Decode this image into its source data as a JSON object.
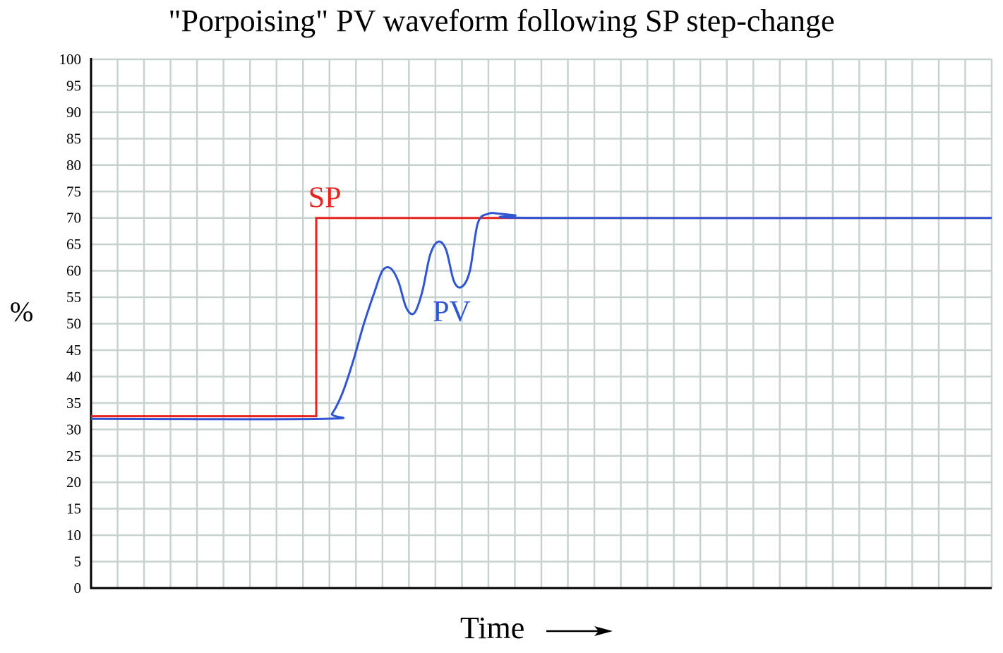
{
  "chart_data": {
    "type": "line",
    "title": "\"Porpoising\" PV waveform following SP step-change",
    "xlabel": "Time",
    "ylabel": "%",
    "ylim": [
      0,
      100
    ],
    "xlim": [
      0,
      34
    ],
    "grid": true,
    "y_ticks": [
      "0",
      "5",
      "10",
      "15",
      "20",
      "25",
      "30",
      "35",
      "40",
      "45",
      "50",
      "55",
      "60",
      "65",
      "70",
      "75",
      "80",
      "85",
      "90",
      "95",
      "100"
    ],
    "x_tick_labels_shown": false,
    "colors": {
      "sp": "#e8231f",
      "pv": "#2f55d4",
      "grid": "#c8d3d0",
      "axes": "#000000"
    },
    "series": [
      {
        "name": "SP",
        "label_text": "SP",
        "label_at": [
          8.2,
          72
        ],
        "x": [
          0,
          8.5,
          8.5,
          34
        ],
        "values": [
          32.5,
          32.5,
          70,
          70
        ]
      },
      {
        "name": "PV",
        "label_text": "PV",
        "label_at": [
          12.9,
          50.5
        ],
        "x": [
          0,
          8.8,
          9.1,
          9.5,
          9.9,
          10.3,
          10.7,
          11.0,
          11.3,
          11.6,
          11.9,
          12.2,
          12.5,
          12.8,
          13.1,
          13.4,
          13.7,
          14.0,
          14.3,
          14.6,
          15.0,
          15.4,
          16.0,
          17.0,
          34
        ],
        "values": [
          32,
          32,
          33,
          37,
          43,
          50,
          56,
          60,
          60.5,
          58,
          53,
          52,
          56,
          63,
          65.5,
          64,
          58,
          57,
          60,
          69,
          70.8,
          70.8,
          70.5,
          70,
          70
        ]
      }
    ]
  }
}
